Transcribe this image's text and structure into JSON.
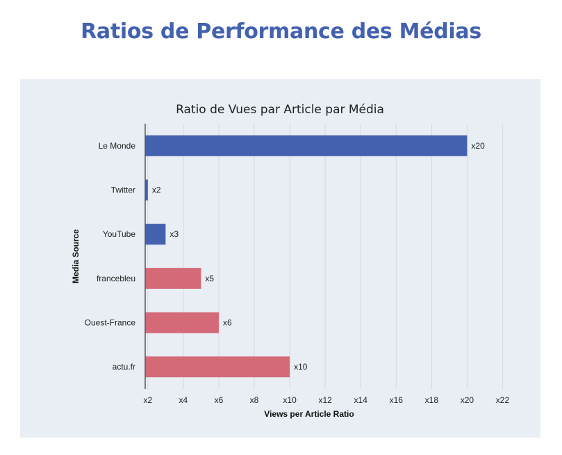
{
  "page_title": "Ratios de Performance des Médias",
  "colors": {
    "title": "#4361ae",
    "panel_bg": "#e8eef4",
    "gridline": "#d4d9de",
    "axis": "#555555"
  },
  "chart_data": {
    "type": "bar",
    "orientation": "horizontal",
    "title": "Ratio de Vues par Article par Média",
    "xlabel": "Views per Article Ratio",
    "ylabel": "Media Source",
    "categories": [
      "Le Monde",
      "Twitter",
      "YouTube",
      "francebleu",
      "Ouest-France",
      "actu.fr"
    ],
    "values": [
      20,
      2,
      3,
      5,
      6,
      10
    ],
    "data_labels": [
      "x20",
      "x2",
      "x3",
      "x5",
      "x6",
      "x10"
    ],
    "bar_colors": [
      "#4361ae",
      "#4361ae",
      "#4361ae",
      "#d46a78",
      "#d46a78",
      "#d46a78"
    ],
    "xlim": [
      1.85,
      23
    ],
    "xticks": [
      2,
      4,
      6,
      8,
      10,
      12,
      14,
      16,
      18,
      20,
      22
    ],
    "xtick_labels": [
      "x2",
      "x4",
      "x6",
      "x8",
      "x10",
      "x12",
      "x14",
      "x16",
      "x18",
      "x20",
      "x22"
    ],
    "grid": true,
    "legend": "none"
  }
}
